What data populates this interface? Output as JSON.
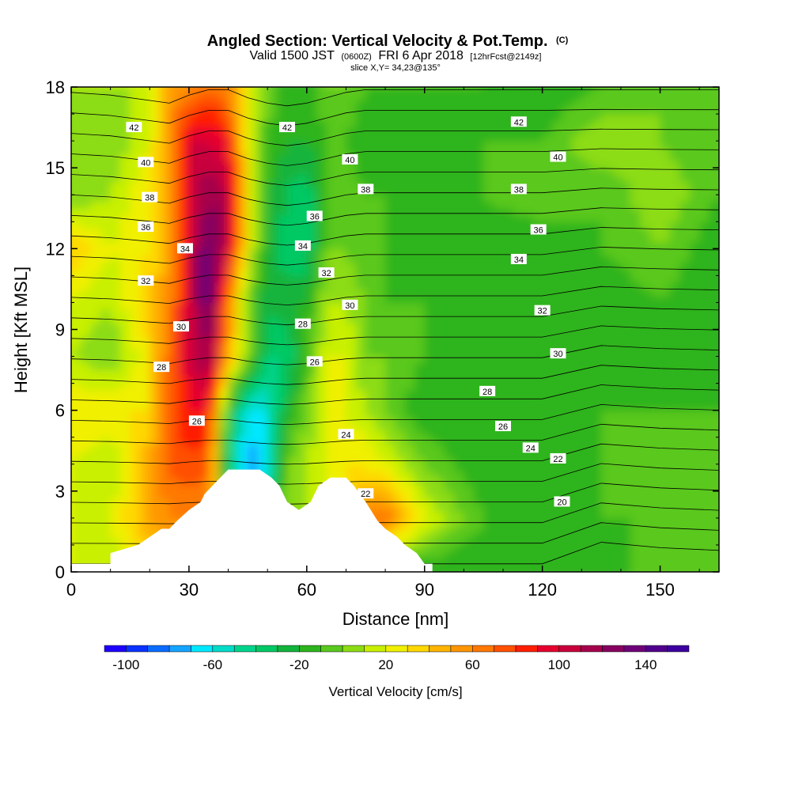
{
  "title": {
    "main": "Angled Section: Vertical Velocity & Pot.Temp.",
    "main_suffix": "(C)",
    "line2_a": "Valid 1500 JST",
    "line2_b": "(0600Z)",
    "line2_c": "FRI 6 Apr 2018",
    "line2_d": "[12hrFcst@2149z]",
    "line3": "slice X,Y= 34,23@135°"
  },
  "chart_data": {
    "type": "heatmap",
    "xlabel": "Distance [nm]",
    "ylabel": "Height [Kft MSL]",
    "xlim": [
      0,
      165
    ],
    "ylim": [
      0,
      18
    ],
    "x_ticks": [
      0,
      30,
      60,
      90,
      120,
      150
    ],
    "y_ticks": [
      0,
      3,
      6,
      9,
      12,
      15,
      18
    ],
    "colorbar": {
      "title": "Vertical Velocity [cm/s]",
      "min": -110,
      "max": 160,
      "step": 10,
      "tick_values": [
        -100,
        -60,
        -20,
        20,
        60,
        100,
        140
      ],
      "colors": [
        "#1e00ff",
        "#0a32ff",
        "#0a6cff",
        "#14a4ff",
        "#00e8ff",
        "#00dcc8",
        "#00d48c",
        "#00c864",
        "#12b43c",
        "#2db41e",
        "#5ac81e",
        "#8cdc14",
        "#c8f000",
        "#f0f000",
        "#ffd800",
        "#ffb400",
        "#ff9600",
        "#ff7800",
        "#ff5000",
        "#ff1e00",
        "#e6002d",
        "#c8003c",
        "#a5004b",
        "#87005f",
        "#6e0078",
        "#50008c",
        "#3c00a0"
      ]
    },
    "vertical_velocity_field": {
      "x": [
        0,
        10,
        20,
        25,
        30,
        35,
        40,
        45,
        50,
        55,
        60,
        65,
        70,
        75,
        80,
        90,
        105,
        120,
        135,
        150,
        165
      ],
      "heights": [
        0,
        2,
        4,
        6,
        8,
        10,
        12,
        14,
        16,
        18
      ],
      "values": [
        [
          20,
          20,
          20,
          30,
          10,
          20,
          40,
          0,
          0,
          10
        ],
        [
          10,
          20,
          10,
          30,
          0,
          10,
          20,
          10,
          0,
          10
        ],
        [
          30,
          50,
          50,
          30,
          30,
          40,
          30,
          30,
          20,
          10
        ],
        [
          40,
          60,
          70,
          70,
          70,
          60,
          50,
          50,
          60,
          50
        ],
        [
          40,
          60,
          80,
          90,
          100,
          100,
          100,
          100,
          100,
          60
        ],
        [
          40,
          60,
          70,
          90,
          120,
          140,
          140,
          120,
          100,
          70
        ],
        [
          -20,
          0,
          -40,
          -20,
          50,
          60,
          100,
          110,
          90,
          60
        ],
        [
          -60,
          -60,
          -80,
          -60,
          0,
          0,
          20,
          30,
          20,
          20
        ],
        [
          -10,
          -40,
          -60,
          -60,
          -40,
          -30,
          -20,
          -20,
          -10,
          0
        ],
        [
          0,
          10,
          0,
          -20,
          -40,
          -20,
          -40,
          -30,
          -20,
          -20
        ],
        [
          0,
          10,
          10,
          0,
          -10,
          -20,
          -40,
          -40,
          -20,
          -20
        ],
        [
          -20,
          10,
          20,
          20,
          20,
          10,
          0,
          -10,
          -10,
          0
        ],
        [
          -20,
          40,
          30,
          20,
          20,
          10,
          0,
          0,
          -10,
          0
        ],
        [
          -20,
          60,
          30,
          10,
          0,
          0,
          -10,
          -10,
          -20,
          -10
        ],
        [
          -20,
          70,
          20,
          0,
          0,
          -10,
          -10,
          -10,
          -10,
          -10
        ],
        [
          -20,
          20,
          0,
          -20,
          -10,
          -10,
          -20,
          -10,
          -20,
          -10
        ],
        [
          -20,
          -10,
          -20,
          -20,
          -20,
          -20,
          -20,
          -10,
          -10,
          -10
        ],
        [
          -10,
          -10,
          -20,
          -20,
          -10,
          -20,
          -20,
          0,
          -10,
          -20
        ],
        [
          -20,
          -10,
          -10,
          -10,
          -20,
          -20,
          -10,
          -10,
          10,
          -10
        ],
        [
          0,
          -10,
          0,
          -10,
          -10,
          -10,
          0,
          10,
          0,
          0
        ],
        [
          -10,
          -10,
          -10,
          -10,
          -20,
          -20,
          -20,
          -10,
          -10,
          -10
        ]
      ]
    },
    "terrain": {
      "x": [
        0,
        10,
        10,
        17,
        20,
        23,
        25,
        27,
        30,
        33,
        34,
        36,
        38,
        40,
        43,
        48,
        51,
        53,
        55,
        58,
        61,
        63,
        66,
        70,
        72,
        75,
        78,
        80,
        83,
        85,
        88,
        90,
        92
      ],
      "height": [
        0.3,
        0.3,
        0.7,
        1,
        1.3,
        1.6,
        1.6,
        1.9,
        2.3,
        2.6,
        2.9,
        3.2,
        3.5,
        3.8,
        3.8,
        3.8,
        3.5,
        3.2,
        2.6,
        2.3,
        2.6,
        3.2,
        3.5,
        3.5,
        3.2,
        2.6,
        1.9,
        1.6,
        1.3,
        1,
        0.7,
        0.3,
        0.3
      ]
    },
    "potential_temperature_contours": {
      "levels": [
        20,
        21,
        22,
        23,
        24,
        25,
        26,
        27,
        28,
        29,
        30,
        31,
        32,
        33,
        34,
        35,
        36,
        37,
        38,
        39,
        40,
        41,
        42,
        43
      ],
      "x": [
        0,
        10,
        20,
        25,
        30,
        35,
        40,
        45,
        50,
        55,
        60,
        65,
        70,
        75,
        80,
        90,
        105,
        120,
        135,
        150,
        165
      ],
      "level_20_height": [
        0.3,
        0.3,
        0.3,
        0.3,
        0.3,
        0.3,
        0.3,
        0.3,
        0.3,
        0.3,
        0.3,
        0.3,
        0.3,
        0.3,
        0.3,
        0.3,
        0.3,
        0.3,
        1.1,
        0.9,
        0.8
      ],
      "level_43_height": [
        17.8,
        17.7,
        17.5,
        17.4,
        17.7,
        17.9,
        17.9,
        17.6,
        17.4,
        17.3,
        17.4,
        17.6,
        17.8,
        17.9,
        17.9,
        17.9,
        17.9,
        17.9,
        17.9,
        17.9,
        17.9
      ]
    },
    "contour_labels": [
      {
        "text": "42",
        "x": 16,
        "y": 16.5
      },
      {
        "text": "40",
        "x": 19,
        "y": 15.2
      },
      {
        "text": "38",
        "x": 20,
        "y": 13.9
      },
      {
        "text": "36",
        "x": 19,
        "y": 12.8
      },
      {
        "text": "34",
        "x": 29,
        "y": 12.0
      },
      {
        "text": "32",
        "x": 19,
        "y": 10.8
      },
      {
        "text": "30",
        "x": 28,
        "y": 9.1
      },
      {
        "text": "28",
        "x": 23,
        "y": 7.6
      },
      {
        "text": "26",
        "x": 32,
        "y": 5.6
      },
      {
        "text": "42",
        "x": 55,
        "y": 16.5
      },
      {
        "text": "40",
        "x": 71,
        "y": 15.3
      },
      {
        "text": "38",
        "x": 75,
        "y": 14.2
      },
      {
        "text": "36",
        "x": 62,
        "y": 13.2
      },
      {
        "text": "34",
        "x": 59,
        "y": 12.1
      },
      {
        "text": "32",
        "x": 65,
        "y": 11.1
      },
      {
        "text": "30",
        "x": 71,
        "y": 9.9
      },
      {
        "text": "28",
        "x": 59,
        "y": 9.2
      },
      {
        "text": "26",
        "x": 62,
        "y": 7.8
      },
      {
        "text": "24",
        "x": 70,
        "y": 5.1
      },
      {
        "text": "22",
        "x": 75,
        "y": 2.9
      },
      {
        "text": "42",
        "x": 114,
        "y": 16.7
      },
      {
        "text": "40",
        "x": 124,
        "y": 15.4
      },
      {
        "text": "38",
        "x": 114,
        "y": 14.2
      },
      {
        "text": "36",
        "x": 119,
        "y": 12.7
      },
      {
        "text": "34",
        "x": 114,
        "y": 11.6
      },
      {
        "text": "32",
        "x": 120,
        "y": 9.7
      },
      {
        "text": "30",
        "x": 124,
        "y": 8.1
      },
      {
        "text": "28",
        "x": 106,
        "y": 6.7
      },
      {
        "text": "26",
        "x": 110,
        "y": 5.4
      },
      {
        "text": "24",
        "x": 117,
        "y": 4.6
      },
      {
        "text": "22",
        "x": 124,
        "y": 4.2
      },
      {
        "text": "20",
        "x": 125,
        "y": 2.6
      }
    ]
  }
}
